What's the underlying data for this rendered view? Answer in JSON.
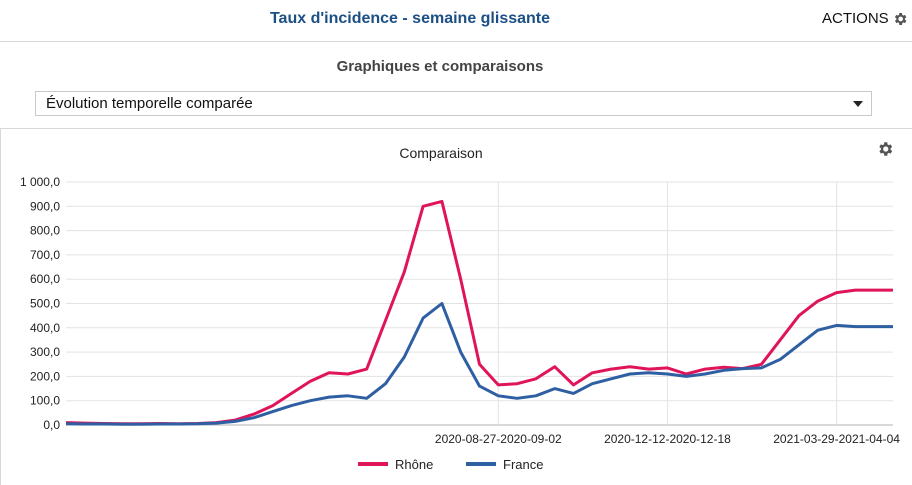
{
  "header": {
    "title": "Taux d'incidence - semaine glissante",
    "actions_label": "ACTIONS"
  },
  "section": {
    "title": "Graphiques et comparaisons"
  },
  "select": {
    "value": "Évolution temporelle comparée"
  },
  "chart_data": {
    "type": "line",
    "title": "Comparaison",
    "ylim": [
      0,
      1000
    ],
    "yticks": [
      "0,0",
      "100,0",
      "200,0",
      "300,0",
      "400,0",
      "500,0",
      "600,0",
      "700,0",
      "800,0",
      "900,0",
      "1 000,0"
    ],
    "xlim": [
      0,
      44
    ],
    "xticks": [
      {
        "x": 23,
        "label": "2020-08-27-2020-09-02"
      },
      {
        "x": 32,
        "label": "2020-12-12-2020-12-18"
      },
      {
        "x": 41,
        "label": "2021-03-29-2021-04-04"
      }
    ],
    "grid": true,
    "legend_position": "bottom",
    "series": [
      {
        "name": "Rhône",
        "color": "#e0145a",
        "x": [
          0,
          1,
          2,
          3,
          4,
          5,
          6,
          7,
          8,
          9,
          10,
          11,
          12,
          13,
          14,
          15,
          16,
          17,
          18,
          19,
          20,
          21,
          22,
          23,
          24,
          25,
          26,
          27,
          28,
          29,
          30,
          31,
          32,
          33,
          34,
          35,
          36,
          37,
          38,
          39,
          40,
          41,
          42,
          43,
          44
        ],
        "y": [
          10,
          8,
          6,
          5,
          5,
          6,
          5,
          6,
          10,
          20,
          45,
          80,
          130,
          180,
          215,
          210,
          230,
          430,
          630,
          900,
          920,
          600,
          250,
          165,
          170,
          190,
          240,
          165,
          215,
          230,
          240,
          230,
          235,
          210,
          230,
          238,
          232,
          250,
          350,
          450,
          510,
          545,
          555,
          555,
          555
        ]
      },
      {
        "name": "France",
        "color": "#2f5fa3",
        "x": [
          0,
          1,
          2,
          3,
          4,
          5,
          6,
          7,
          8,
          9,
          10,
          11,
          12,
          13,
          14,
          15,
          16,
          17,
          18,
          19,
          20,
          21,
          22,
          23,
          24,
          25,
          26,
          27,
          28,
          29,
          30,
          31,
          32,
          33,
          34,
          35,
          36,
          37,
          38,
          39,
          40,
          41,
          42,
          43,
          44
        ],
        "y": [
          5,
          4,
          4,
          3,
          3,
          4,
          4,
          5,
          8,
          15,
          30,
          55,
          80,
          100,
          115,
          120,
          110,
          170,
          280,
          440,
          500,
          300,
          160,
          120,
          110,
          120,
          150,
          130,
          170,
          190,
          210,
          215,
          210,
          200,
          210,
          225,
          232,
          235,
          270,
          330,
          390,
          410,
          405,
          405,
          405
        ]
      }
    ]
  }
}
